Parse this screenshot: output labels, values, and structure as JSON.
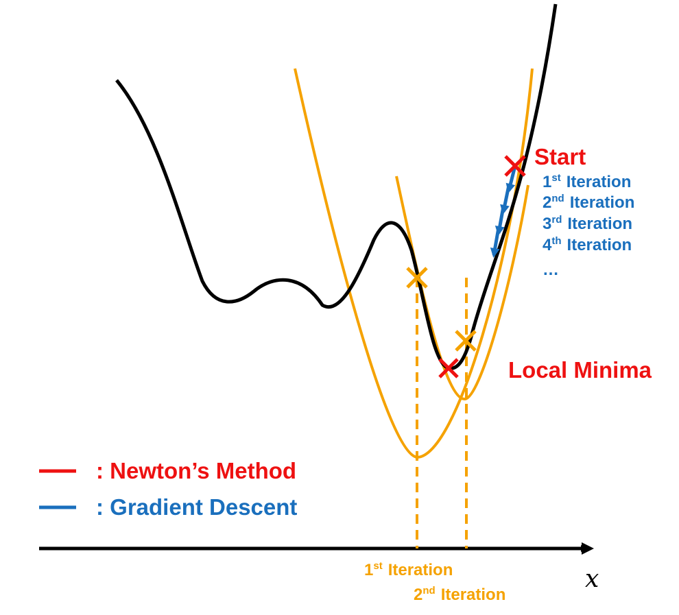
{
  "colors": {
    "curve": "#000000",
    "newton": "#ee1111",
    "gradient": "#1a6fbd",
    "approx": "#f5a200",
    "axis": "#000000"
  },
  "labels": {
    "start": "Start",
    "local_minima": "Local Minima",
    "axis_x": "x",
    "gd_iterations": [
      {
        "num": "1",
        "sup": "st",
        "text": "Iteration"
      },
      {
        "num": "2",
        "sup": "nd",
        "text": "Iteration"
      },
      {
        "num": "3",
        "sup": "rd",
        "text": "Iteration"
      },
      {
        "num": "4",
        "sup": "th",
        "text": "Iteration"
      }
    ],
    "gd_ellipsis": "…",
    "newton_iterations": [
      {
        "num": "1",
        "sup": "st",
        "text": "Iteration"
      },
      {
        "num": "2",
        "sup": "nd",
        "text": "Iteration"
      }
    ]
  },
  "legend": [
    {
      "label": ": Newton’s Method",
      "color": "#ee1111"
    },
    {
      "label": ": Gradient Descent",
      "color": "#1a6fbd"
    }
  ]
}
